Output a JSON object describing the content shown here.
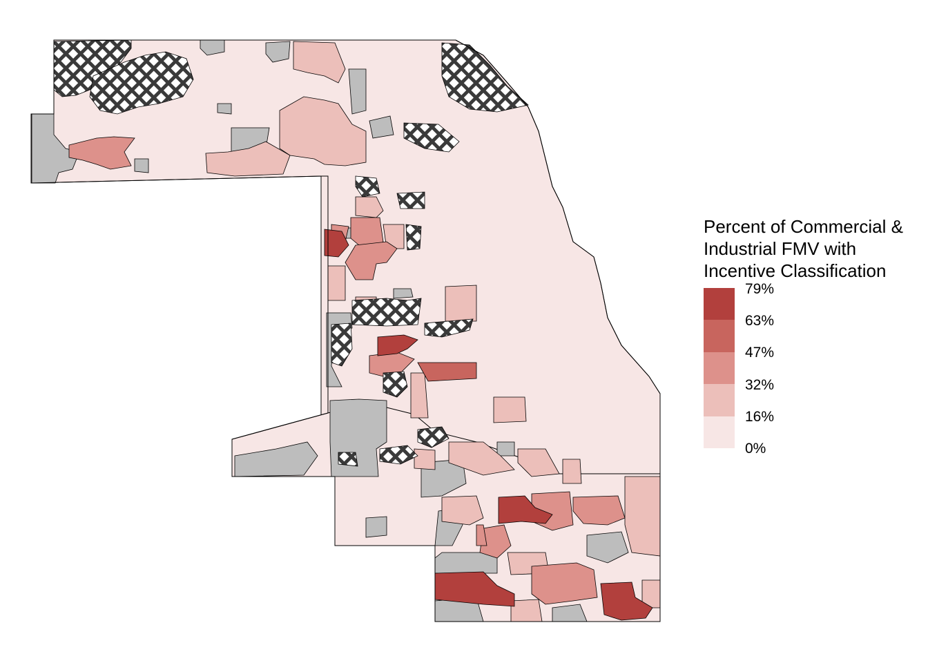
{
  "legend": {
    "title_line1": "Percent of Commercial &",
    "title_line2": "Industrial FMV with",
    "title_line3": "Incentive Classification",
    "ticks": [
      "79%",
      "63%",
      "47%",
      "32%",
      "16%",
      "0%"
    ],
    "bins": [
      {
        "range": "63% to 79%",
        "color": "#b2403d"
      },
      {
        "range": "47% to 63%",
        "color": "#c8655e"
      },
      {
        "range": "32% to 47%",
        "color": "#dd918b"
      },
      {
        "range": "16% to 32%",
        "color": "#ecbfba"
      },
      {
        "range": "0% to 16%",
        "color": "#f7e6e5"
      }
    ]
  },
  "colors": {
    "no_data": "#bdbdbd",
    "border": "#000000",
    "hatch": "#3a3a3a"
  }
}
